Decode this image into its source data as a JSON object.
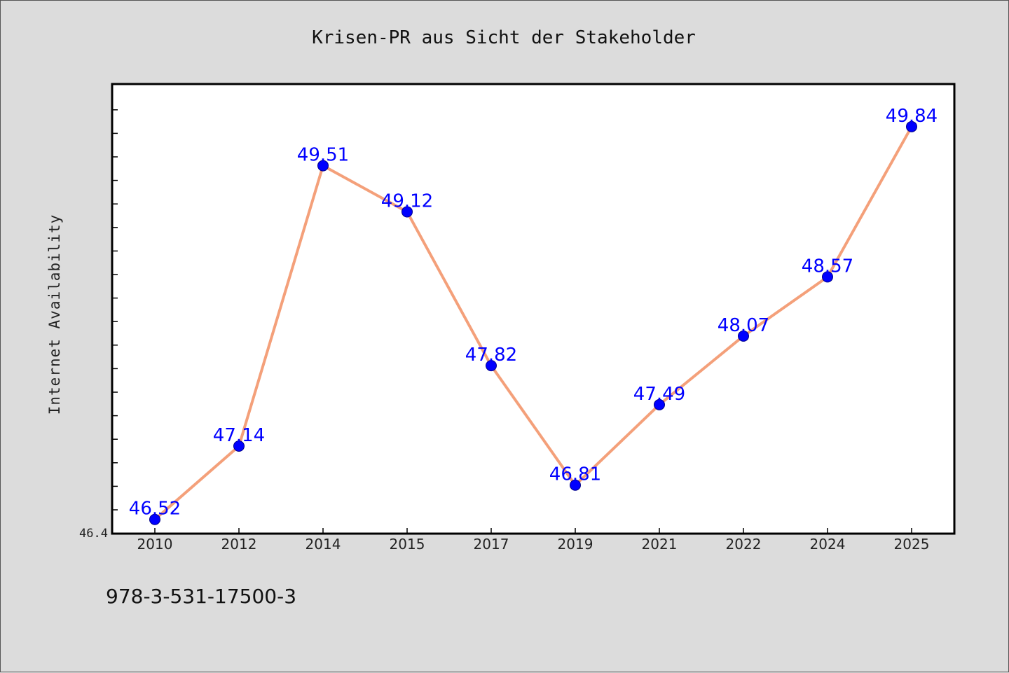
{
  "chart_data": {
    "type": "line",
    "title": "Krisen-PR aus Sicht der Stakeholder",
    "xlabel": "",
    "ylabel": "Internet Availability",
    "categories": [
      "2010",
      "2012",
      "2014",
      "2015",
      "2017",
      "2019",
      "2021",
      "2022",
      "2024",
      "2025"
    ],
    "series": [
      {
        "values": [
          46.52,
          47.14,
          49.51,
          49.12,
          47.82,
          46.81,
          47.49,
          48.07,
          48.57,
          49.84
        ],
        "data_labels": [
          "46.52",
          "47.14",
          "49.51",
          "49.12",
          "47.82",
          "46.81",
          "47.49",
          "48.07",
          "48.57",
          "49.84"
        ],
        "line_color": "#f4a07a",
        "marker_color": "#0000ff"
      }
    ],
    "y_min_label": "46.4",
    "ylim": [
      46.4,
      50.2
    ],
    "grid": false,
    "legend": "none"
  },
  "footer": {
    "isbn": "978-3-531-17500-3"
  },
  "colors": {
    "background": "#dcdcdc",
    "plot_background": "#ffffff",
    "label_color": "#0000ff"
  }
}
